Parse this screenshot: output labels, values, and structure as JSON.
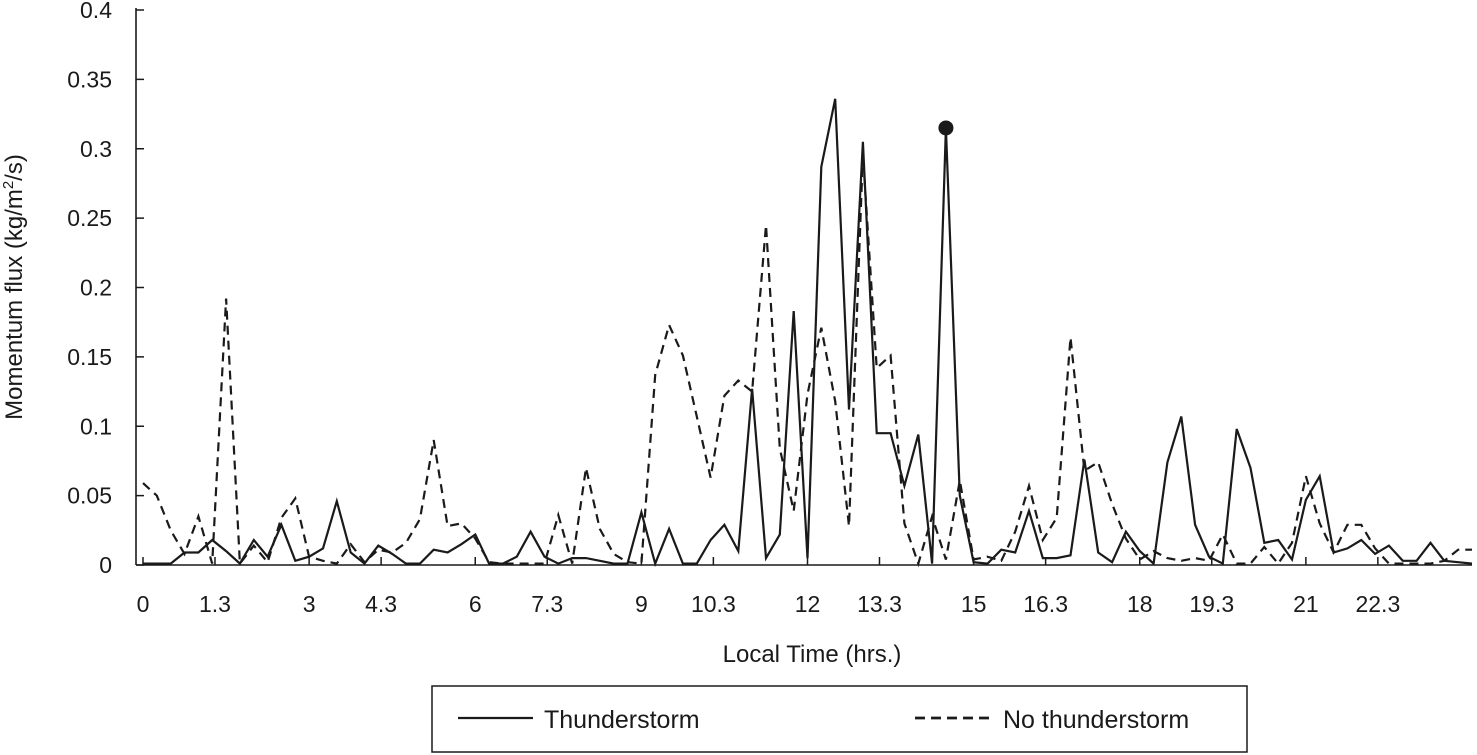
{
  "chart_data": {
    "type": "line",
    "xlabel": "Local Time (hrs.)",
    "ylabel_main": "Momentum flux (kg/m",
    "ylabel_sup": "2",
    "ylabel_tail": "/s)",
    "ylim": [
      0,
      0.4
    ],
    "xlim": [
      0,
      24
    ],
    "y_ticks": [
      "0",
      "0.05",
      "0.1",
      "0.15",
      "0.2",
      "0.25",
      "0.3",
      "0.35",
      "0.4"
    ],
    "x_ticks": [
      "0",
      "1.3",
      "3",
      "4.3",
      "6",
      "7.3",
      "9",
      "10.3",
      "12",
      "13.3",
      "15",
      "16.3",
      "18",
      "19.3",
      "21",
      "22.3"
    ],
    "grid": false,
    "legend_position": "bottom",
    "series": [
      {
        "name": "Thunderstorm",
        "style": "solid",
        "color": "#1a1a1a",
        "x": [
          0,
          0.25,
          0.5,
          0.75,
          1.0,
          1.25,
          1.5,
          1.75,
          2.0,
          2.25,
          2.5,
          2.75,
          3.0,
          3.25,
          3.5,
          3.75,
          4.0,
          4.25,
          4.5,
          4.75,
          5.0,
          5.25,
          5.5,
          5.75,
          6.0,
          6.25,
          6.5,
          6.75,
          7.0,
          7.25,
          7.5,
          7.75,
          8.0,
          8.25,
          8.5,
          8.75,
          9.0,
          9.25,
          9.5,
          9.75,
          10.0,
          10.25,
          10.5,
          10.75,
          11.0,
          11.25,
          11.5,
          11.75,
          12.0,
          12.25,
          12.5,
          12.75,
          13.0,
          13.25,
          13.5,
          13.75,
          14.0,
          14.25,
          14.5,
          14.75,
          15.0,
          15.25,
          15.5,
          15.75,
          16.0,
          16.25,
          16.5,
          16.75,
          17.0,
          17.25,
          17.5,
          17.75,
          18.0,
          18.25,
          18.5,
          18.75,
          19.0,
          19.25,
          19.5,
          19.75,
          20.0,
          20.25,
          20.5,
          20.75,
          21.0,
          21.25,
          21.5,
          21.75,
          22.0,
          22.25,
          22.5,
          22.75,
          23.0,
          23.25,
          23.5,
          23.75,
          24.0
        ],
        "values": [
          0.001,
          0.001,
          0.001,
          0.009,
          0.009,
          0.018,
          0.01,
          0.001,
          0.018,
          0.006,
          0.029,
          0.003,
          0.006,
          0.012,
          0.046,
          0.009,
          0.001,
          0.014,
          0.008,
          0.001,
          0.001,
          0.011,
          0.009,
          0.015,
          0.022,
          0.001,
          0.001,
          0.006,
          0.024,
          0.006,
          0.001,
          0.005,
          0.005,
          0.003,
          0.001,
          0.001,
          0.038,
          0.001,
          0.026,
          0.001,
          0.001,
          0.018,
          0.029,
          0.01,
          0.127,
          0.005,
          0.022,
          0.183,
          0.005,
          0.287,
          0.336,
          0.112,
          0.305,
          0.095,
          0.095,
          0.057,
          0.094,
          0.001,
          0.315,
          0.05,
          0.002,
          0.001,
          0.011,
          0.009,
          0.039,
          0.005,
          0.005,
          0.007,
          0.076,
          0.009,
          0.002,
          0.024,
          0.01,
          0.001,
          0.074,
          0.107,
          0.029,
          0.006,
          0.001,
          0.098,
          0.07,
          0.016,
          0.018,
          0.004,
          0.047,
          0.064,
          0.009,
          0.012,
          0.018,
          0.008,
          0.014,
          0.003,
          0.003,
          0.016,
          0.003,
          0.002,
          0.001
        ],
        "marker": {
          "x": 14.5,
          "y": 0.315
        }
      },
      {
        "name": "No thunderstorm",
        "style": "dashed",
        "color": "#1a1a1a",
        "x": [
          0,
          0.25,
          0.5,
          0.75,
          1.0,
          1.25,
          1.5,
          1.75,
          2.0,
          2.25,
          2.5,
          2.75,
          3.0,
          3.25,
          3.5,
          3.75,
          4.0,
          4.25,
          4.5,
          4.75,
          5.0,
          5.25,
          5.5,
          5.75,
          6.0,
          6.25,
          6.5,
          6.75,
          7.0,
          7.25,
          7.5,
          7.75,
          8.0,
          8.25,
          8.5,
          8.75,
          9.0,
          9.25,
          9.5,
          9.75,
          10.0,
          10.25,
          10.5,
          10.75,
          11.0,
          11.25,
          11.5,
          11.75,
          12.0,
          12.25,
          12.5,
          12.75,
          13.0,
          13.25,
          13.5,
          13.75,
          14.0,
          14.25,
          14.5,
          14.75,
          15.0,
          15.25,
          15.5,
          15.75,
          16.0,
          16.25,
          16.5,
          16.75,
          17.0,
          17.25,
          17.5,
          17.75,
          18.0,
          18.25,
          18.5,
          18.75,
          19.0,
          19.25,
          19.5,
          19.75,
          20.0,
          20.25,
          20.5,
          20.75,
          21.0,
          21.25,
          21.5,
          21.75,
          22.0,
          22.25,
          22.5,
          22.75,
          23.0,
          23.25,
          23.5,
          23.75,
          24.0
        ],
        "values": [
          0.059,
          0.05,
          0.025,
          0.008,
          0.035,
          0.001,
          0.192,
          0.001,
          0.014,
          0.002,
          0.034,
          0.048,
          0.006,
          0.003,
          0.001,
          0.015,
          0.002,
          0.011,
          0.009,
          0.016,
          0.033,
          0.09,
          0.028,
          0.03,
          0.019,
          0.002,
          0.001,
          0.001,
          0.001,
          0.001,
          0.036,
          0.001,
          0.07,
          0.026,
          0.008,
          0.002,
          0.001,
          0.137,
          0.173,
          0.151,
          0.107,
          0.063,
          0.122,
          0.133,
          0.125,
          0.245,
          0.084,
          0.039,
          0.123,
          0.171,
          0.118,
          0.028,
          0.296,
          0.142,
          0.151,
          0.03,
          0.001,
          0.035,
          0.004,
          0.061,
          0.004,
          0.006,
          0.003,
          0.024,
          0.057,
          0.018,
          0.034,
          0.164,
          0.068,
          0.074,
          0.044,
          0.019,
          0.004,
          0.01,
          0.005,
          0.003,
          0.005,
          0.003,
          0.022,
          0.001,
          0.001,
          0.013,
          0.001,
          0.016,
          0.064,
          0.03,
          0.009,
          0.029,
          0.029,
          0.012,
          0.001,
          0.001,
          0.001,
          0.001,
          0.003,
          0.011,
          0.011
        ]
      }
    ]
  }
}
